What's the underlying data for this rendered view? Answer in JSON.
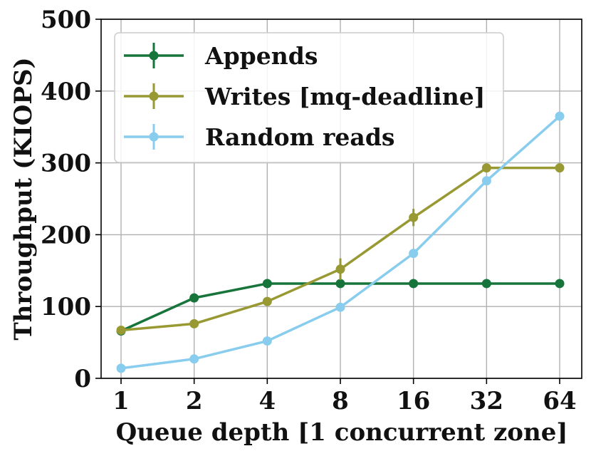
{
  "chart_data": {
    "type": "line",
    "title": "",
    "xlabel": "Queue depth [1 concurrent zone]",
    "ylabel": "Throughput (KIOPS)",
    "x_scale": "log2",
    "categories": [
      "1",
      "2",
      "4",
      "8",
      "16",
      "32",
      "64"
    ],
    "x": [
      1,
      2,
      4,
      8,
      16,
      32,
      64
    ],
    "ylim": [
      0,
      500
    ],
    "yticks": [
      "0",
      "100",
      "200",
      "300",
      "400",
      "500"
    ],
    "grid": true,
    "legend_position": "top-left",
    "series": [
      {
        "name": "Appends",
        "color": "#17743a",
        "values": [
          66,
          112,
          132,
          132,
          132,
          132,
          132
        ],
        "errors": [
          2,
          2,
          2,
          2,
          2,
          2,
          2
        ]
      },
      {
        "name": "Writes [mq-deadline]",
        "color": "#999933",
        "values": [
          67,
          76,
          107,
          152,
          224,
          293,
          293
        ],
        "errors": [
          2,
          2,
          3,
          15,
          12,
          4,
          3
        ]
      },
      {
        "name": "Random reads",
        "color": "#88ccee",
        "values": [
          14,
          27,
          52,
          99,
          174,
          275,
          365
        ],
        "errors": [
          1,
          1,
          2,
          2,
          3,
          3,
          3
        ]
      }
    ]
  }
}
